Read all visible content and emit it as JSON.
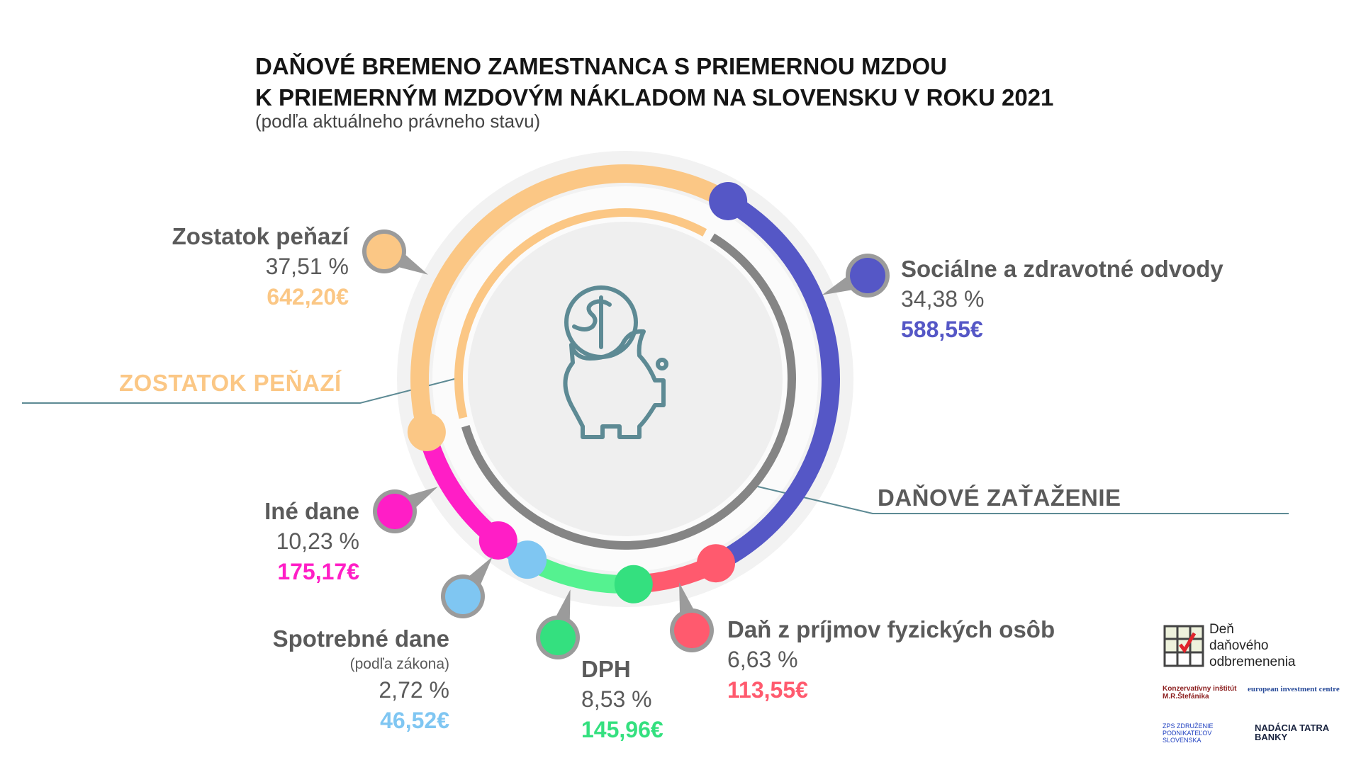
{
  "header": {
    "title_line1": "DAŇOVÉ BREMENO ZAMESTNANCA S PRIEMERNOU MZDOU",
    "title_line2": "K PRIEMERNÝM MZDOVÝM NÁKLADOM NA SLOVENSKU V ROKU 2021",
    "subtitle": "(podľa aktuálneho právneho stavu)"
  },
  "section_labels": {
    "remainder": "ZOSTATOK PEŇAZÍ",
    "tax_burden": "DAŇOVÉ ZAŤAŽENIE"
  },
  "colors": {
    "remainder": "#fbc785",
    "social": "#5557c6",
    "income_tax": "#ff5a6e",
    "vat": "#55f290",
    "vat_dot": "#34e07f",
    "excise": "#7fc6f2",
    "other": "#ff1ec6",
    "tax_inner": "#858585",
    "icon": "#5d8a94"
  },
  "chart_data": {
    "type": "pie",
    "title": "Daňové bremeno zamestnanca s priemernou mzdou k priemerným mzdovým nákladom na Slovensku v roku 2021",
    "unit": "%",
    "segments": [
      {
        "key": "remainder",
        "name": "Zostatok peňazí",
        "percent": 37.51,
        "percent_text": "37,51 %",
        "amount_text": "642,20€",
        "note": ""
      },
      {
        "key": "social",
        "name": "Sociálne a zdravotné odvody",
        "percent": 34.38,
        "percent_text": "34,38 %",
        "amount_text": "588,55€",
        "note": ""
      },
      {
        "key": "income_tax",
        "name": "Daň z príjmov fyzických osôb",
        "percent": 6.63,
        "percent_text": "6,63 %",
        "amount_text": "113,55€",
        "note": ""
      },
      {
        "key": "vat",
        "name": "DPH",
        "percent": 8.53,
        "percent_text": "8,53 %",
        "amount_text": "145,96€",
        "note": ""
      },
      {
        "key": "excise",
        "name": "Spotrebné dane",
        "percent": 2.72,
        "percent_text": "2,72 %",
        "amount_text": "46,52€",
        "note": "(podľa zákona)"
      },
      {
        "key": "other",
        "name": "Iné dane",
        "percent": 10.23,
        "percent_text": "10,23 %",
        "amount_text": "175,17€",
        "note": ""
      }
    ],
    "inner_ring": [
      {
        "name": "ZOSTATOK PEŇAZÍ",
        "percent": 37.51
      },
      {
        "name": "DAŇOVÉ ZAŤAŽENIE",
        "percent": 62.49
      }
    ]
  },
  "logos": {
    "main_line1": "Deň",
    "main_line2": "daňového",
    "main_line3": "odbremenenia",
    "kimrs": "Konzervatívny inštitút M.R.Štefánika",
    "eic": "european investment centre",
    "zps": "ZPS ZDRUŽENIE PODNIKATEĽOV SLOVENSKA",
    "nadacia": "NADÁCIA TATRA BANKY"
  }
}
